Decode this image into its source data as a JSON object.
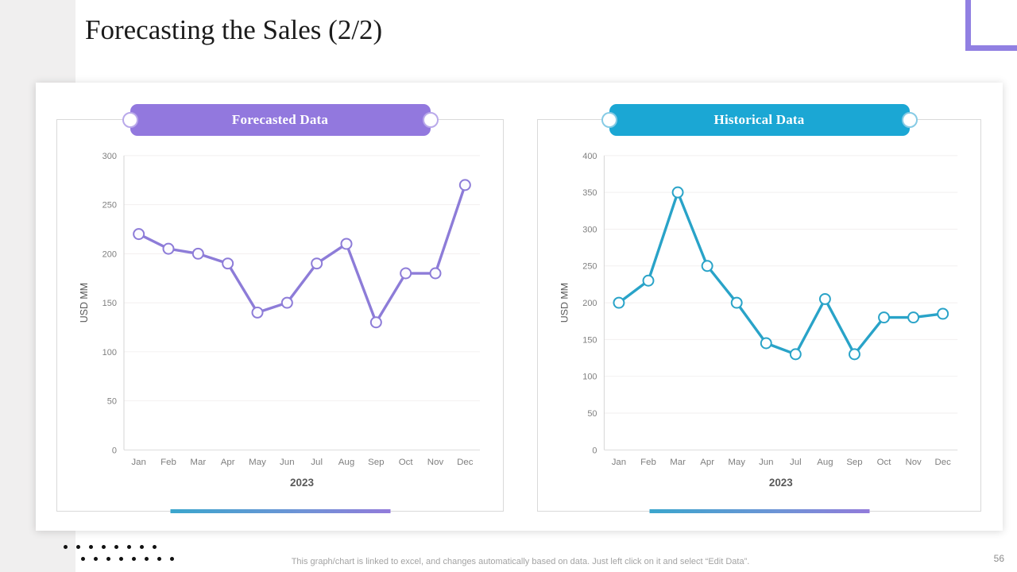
{
  "slide": {
    "title": "Forecasting the Sales (2/2)",
    "page_number": "56",
    "footer_note": "This graph/chart is linked to excel,  and changes automatically based on data. Just left click on it and select “Edit Data”.",
    "accent_purple": "#9278de",
    "accent_blue": "#1ba7d4"
  },
  "chart_data": [
    {
      "type": "line",
      "title": "Forecasted Data",
      "x": [
        "Jan",
        "Feb",
        "Mar",
        "Apr",
        "May",
        "Jun",
        "Jul",
        "Aug",
        "Sep",
        "Oct",
        "Nov",
        "Dec"
      ],
      "series": [
        {
          "name": "Forecasted Data",
          "values": [
            220,
            205,
            200,
            190,
            140,
            150,
            190,
            210,
            130,
            180,
            180,
            270
          ]
        }
      ],
      "xlabel": "2023",
      "ylabel": "USD MM",
      "ylim": [
        0,
        300
      ],
      "ystep": 50,
      "grid": true,
      "legend": "none",
      "line_color": "#8d7cd8",
      "marker_fill": "#fcfbfe"
    },
    {
      "type": "line",
      "title": "Historical Data",
      "x": [
        "Jan",
        "Feb",
        "Mar",
        "Apr",
        "May",
        "Jun",
        "Jul",
        "Aug",
        "Sep",
        "Oct",
        "Nov",
        "Dec"
      ],
      "series": [
        {
          "name": "Historical Data",
          "values": [
            200,
            230,
            350,
            250,
            200,
            145,
            130,
            205,
            130,
            180,
            180,
            185
          ]
        }
      ],
      "xlabel": "2023",
      "ylabel": "USD MM",
      "ylim": [
        0,
        400
      ],
      "ystep": 50,
      "grid": true,
      "legend": "none",
      "line_color": "#29a3c8",
      "marker_fill": "#fcfeff"
    }
  ]
}
